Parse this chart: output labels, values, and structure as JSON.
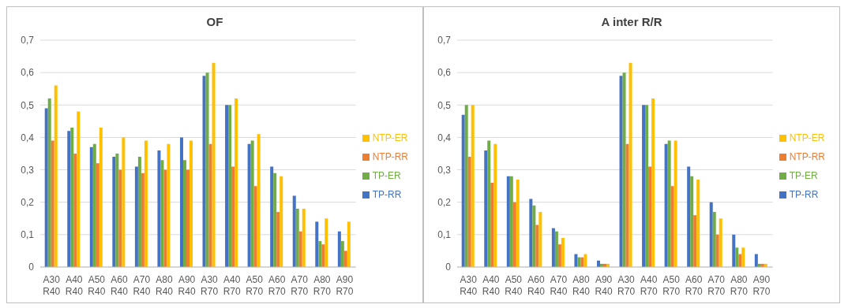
{
  "chart_data": [
    {
      "type": "bar",
      "title": "OF",
      "categories": [
        "A30\nR40",
        "A40\nR40",
        "A50\nR40",
        "A60\nR40",
        "A70\nR40",
        "A80\nR40",
        "A90\nR40",
        "A30\nR70",
        "A40\nR70",
        "A50\nR70",
        "A60\nR70",
        "A70\nR70",
        "A80\nR70",
        "A90\nR70"
      ],
      "series": [
        {
          "name": "TP-RR",
          "color": "#4472c4",
          "values": [
            0.49,
            0.42,
            0.37,
            0.34,
            0.31,
            0.36,
            0.4,
            0.59,
            0.5,
            0.38,
            0.31,
            0.22,
            0.14,
            0.11
          ]
        },
        {
          "name": "TP-ER",
          "color": "#70ad47",
          "values": [
            0.52,
            0.43,
            0.38,
            0.35,
            0.34,
            0.33,
            0.33,
            0.6,
            0.5,
            0.39,
            0.29,
            0.18,
            0.08,
            0.08
          ]
        },
        {
          "name": "NTP-RR",
          "color": "#ed7d31",
          "values": [
            0.39,
            0.35,
            0.32,
            0.3,
            0.29,
            0.3,
            0.3,
            0.38,
            0.31,
            0.25,
            0.17,
            0.11,
            0.07,
            0.05
          ]
        },
        {
          "name": "NTP-ER",
          "color": "#ffc000",
          "values": [
            0.56,
            0.48,
            0.43,
            0.4,
            0.39,
            0.38,
            0.39,
            0.63,
            0.52,
            0.41,
            0.28,
            0.18,
            0.15,
            0.14
          ]
        }
      ],
      "ylim": [
        0,
        0.7
      ],
      "yticks": [
        0,
        {
          "value": 0.1,
          "label": "0,1"
        },
        {
          "value": 0.2,
          "label": "0,2"
        },
        {
          "value": 0.3,
          "label": "0,3"
        },
        {
          "value": 0.4,
          "label": "0,4"
        },
        {
          "value": 0.5,
          "label": "0,5"
        },
        {
          "value": 0.6,
          "label": "0,6"
        },
        {
          "value": 0.7,
          "label": "0,7"
        }
      ],
      "grid": "y",
      "legend": "right"
    },
    {
      "type": "bar",
      "title": "A inter R/R",
      "categories": [
        "A30\nR40",
        "A40\nR40",
        "A50\nR40",
        "A60\nR40",
        "A70\nR40",
        "A80\nR40",
        "A90\nR40",
        "A30\nR70",
        "A40\nR70",
        "A50\nR70",
        "A60\nR70",
        "A70\nR70",
        "A80\nR70",
        "A90\nR70"
      ],
      "series": [
        {
          "name": "TP-RR",
          "color": "#4472c4",
          "values": [
            0.47,
            0.36,
            0.28,
            0.21,
            0.12,
            0.04,
            0.02,
            0.59,
            0.5,
            0.38,
            0.31,
            0.2,
            0.1,
            0.04
          ]
        },
        {
          "name": "TP-ER",
          "color": "#70ad47",
          "values": [
            0.5,
            0.39,
            0.28,
            0.19,
            0.11,
            0.03,
            0.01,
            0.6,
            0.5,
            0.39,
            0.28,
            0.17,
            0.06,
            0.01
          ]
        },
        {
          "name": "NTP-RR",
          "color": "#ed7d31",
          "values": [
            0.34,
            0.26,
            0.2,
            0.13,
            0.07,
            0.03,
            0.01,
            0.38,
            0.31,
            0.25,
            0.16,
            0.1,
            0.04,
            0.01
          ]
        },
        {
          "name": "NTP-ER",
          "color": "#ffc000",
          "values": [
            0.5,
            0.38,
            0.27,
            0.17,
            0.09,
            0.04,
            0.01,
            0.63,
            0.52,
            0.39,
            0.27,
            0.15,
            0.06,
            0.01
          ]
        }
      ],
      "ylim": [
        0,
        0.7
      ],
      "yticks": [
        0,
        {
          "value": 0.1,
          "label": "0,1"
        },
        {
          "value": 0.2,
          "label": "0,2"
        },
        {
          "value": 0.3,
          "label": "0,3"
        },
        {
          "value": 0.4,
          "label": "0,4"
        },
        {
          "value": 0.5,
          "label": "0,5"
        },
        {
          "value": 0.6,
          "label": "0,6"
        },
        {
          "value": 0.7,
          "label": "0,7"
        }
      ],
      "grid": "y",
      "legend": "right"
    }
  ]
}
